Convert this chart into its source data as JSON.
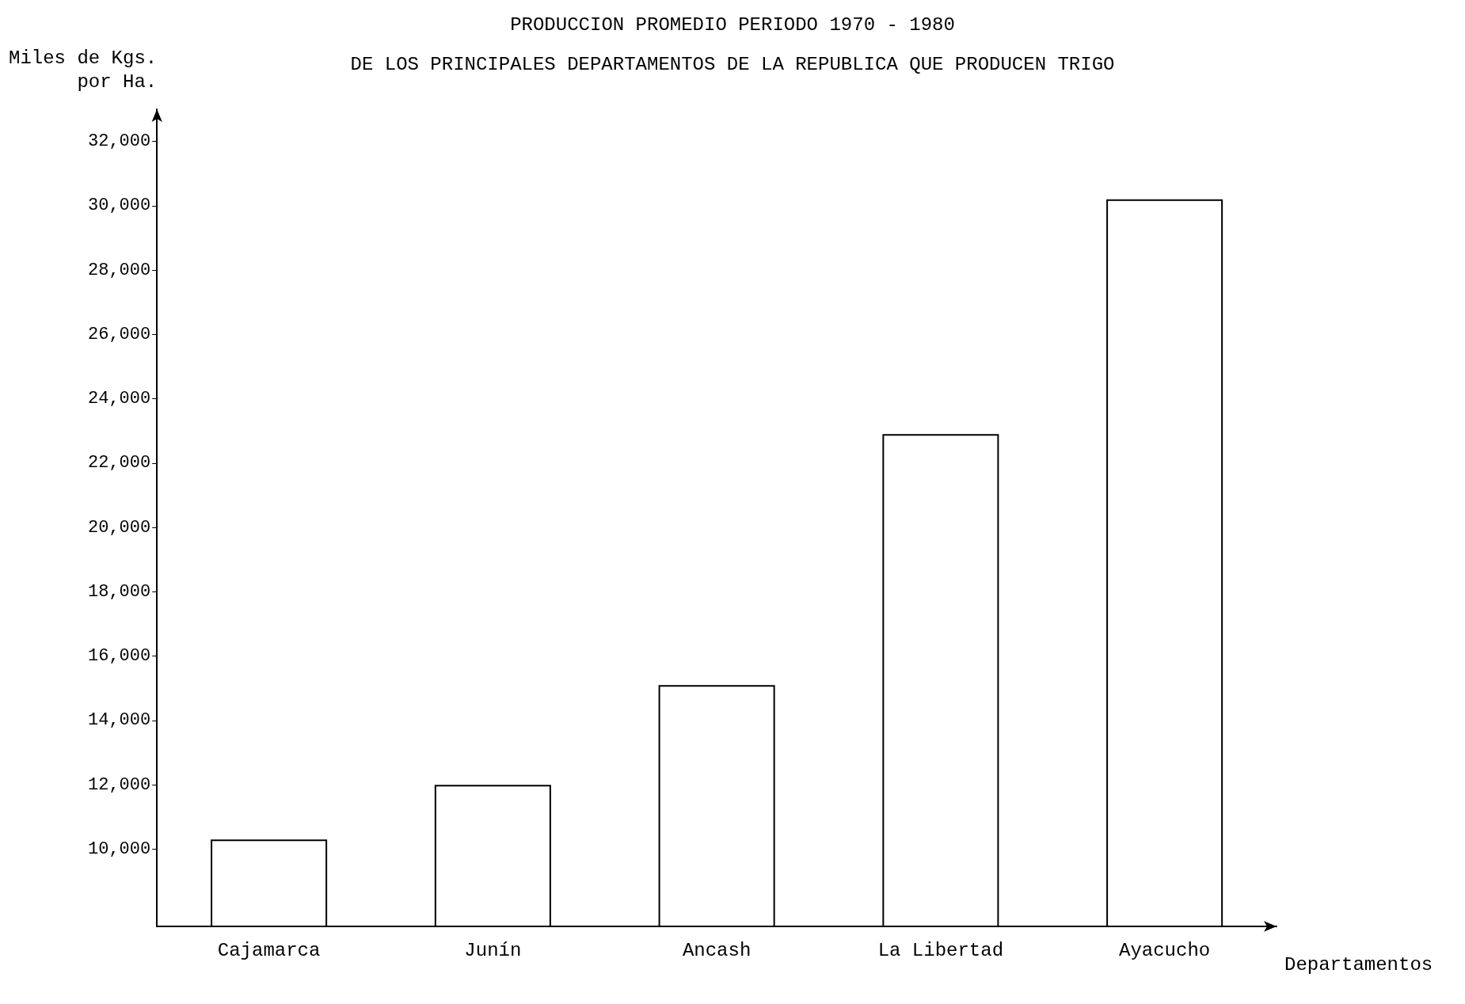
{
  "chart_data": {
    "type": "bar",
    "title": "PRODUCCION PROMEDIO PERIODO 1970 - 1980",
    "subtitle": "DE LOS PRINCIPALES DEPARTAMENTOS DE LA REPUBLICA QUE PRODUCEN TRIGO",
    "xlabel": "Departamentos",
    "ylabel": "Miles de Kgs.\npor Ha.",
    "categories": [
      "Cajamarca",
      "Junín",
      "Ancash",
      "La Libertad",
      "Ayacucho"
    ],
    "values": [
      10300,
      12000,
      15100,
      22900,
      30200
    ],
    "color": "#000000",
    "ylim": [
      7600,
      33000
    ],
    "yticks": [
      {
        "value": 10000,
        "label": "10,000"
      },
      {
        "value": 12000,
        "label": "12,000"
      },
      {
        "value": 14000,
        "label": "14,000"
      },
      {
        "value": 16000,
        "label": "16,000"
      },
      {
        "value": 18000,
        "label": "18,000"
      },
      {
        "value": 20000,
        "label": "20,000"
      },
      {
        "value": 22000,
        "label": "22,000"
      },
      {
        "value": 24000,
        "label": "24,000"
      },
      {
        "value": 26000,
        "label": "26,000"
      },
      {
        "value": 28000,
        "label": "28,000"
      },
      {
        "value": 30000,
        "label": "30,000"
      },
      {
        "value": 32000,
        "label": "32,000"
      }
    ],
    "grid": false
  }
}
